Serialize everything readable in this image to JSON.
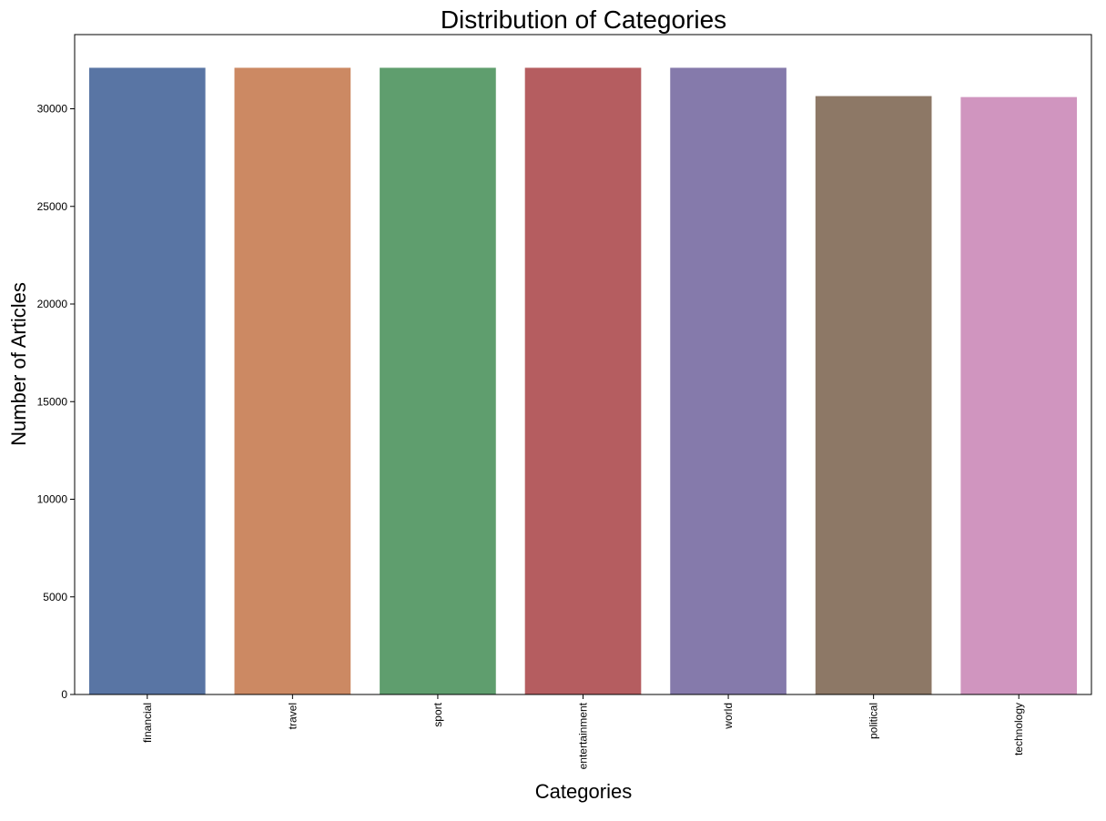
{
  "chart_data": {
    "type": "bar",
    "title": "Distribution of Categories",
    "xlabel": "Categories",
    "ylabel": "Number of Articles",
    "categories": [
      "financial",
      "travel",
      "sport",
      "entertainment",
      "world",
      "political",
      "technology"
    ],
    "values": [
      32100,
      32100,
      32100,
      32100,
      32100,
      30650,
      30600
    ],
    "colors": [
      "#5975a4",
      "#cc8963",
      "#5f9e6e",
      "#b55d60",
      "#857aab",
      "#8d7866",
      "#d095bf"
    ],
    "ylim": [
      0,
      33800
    ],
    "yticks": [
      0,
      5000,
      10000,
      15000,
      20000,
      25000,
      30000
    ],
    "ytick_labels": [
      "0",
      "5000",
      "10000",
      "15000",
      "20000",
      "25000",
      "30000"
    ],
    "xtick_rotation": "vertical",
    "grid": false,
    "legend": "none"
  }
}
